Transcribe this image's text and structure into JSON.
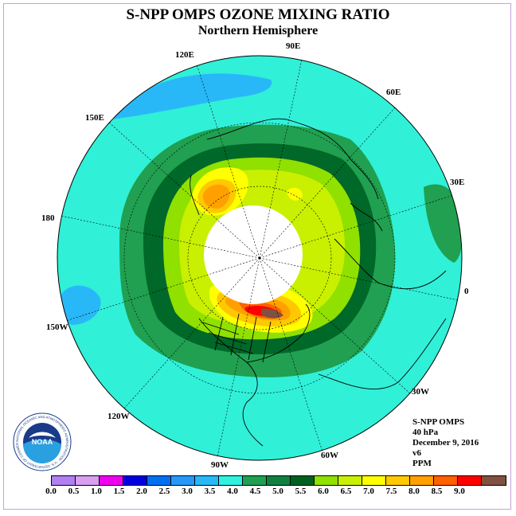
{
  "title": "S-NPP OMPS OZONE MIXING RATIO",
  "subtitle": "Northern Hemisphere",
  "longitude_labels": [
    "90E",
    "60E",
    "30E",
    "0",
    "30W",
    "60W",
    "90W",
    "120W",
    "150W",
    "180",
    "150E",
    "120E"
  ],
  "info": {
    "instrument": "S-NPP OMPS",
    "level": "40 hPa",
    "date": "December 9, 2016",
    "version": "v6",
    "units": "PPM"
  },
  "logo": {
    "text": "NOAA",
    "ring_text": "NATIONAL OCEANIC AND ATMOSPHERIC ADMINISTRATION · U.S. DEPARTMENT OF COMMERCE"
  },
  "colorbar": {
    "ticks": [
      "0.0",
      "0.5",
      "1.0",
      "1.5",
      "2.0",
      "2.5",
      "3.0",
      "3.5",
      "4.0",
      "4.5",
      "5.0",
      "5.5",
      "6.0",
      "6.5",
      "7.0",
      "7.5",
      "8.0",
      "8.5",
      "9.0"
    ],
    "colors": [
      "#b080f0",
      "#d8a0f0",
      "#f000f0",
      "#0000e0",
      "#0070f0",
      "#2898f8",
      "#28b8f8",
      "#30f0e0",
      "#20a050",
      "#108040",
      "#006020",
      "#90e000",
      "#c8f000",
      "#ffff00",
      "#ffc800",
      "#ffa000",
      "#ff6000",
      "#ff0000",
      "#805040"
    ]
  },
  "map_colors": {
    "ocean_bg": "#30f0d8",
    "band_45": "#20a050",
    "band_50": "#006828",
    "band_55": "#90e000",
    "band_60": "#c8f000",
    "band_65": "#ffff00",
    "band_70": "#ffc800",
    "band_75": "#ffa000",
    "band_80": "#ff6000",
    "band_85": "#ff0000",
    "band_90": "#805040",
    "low_30": "#28b8f8",
    "polar_gap": "#ffffff"
  }
}
